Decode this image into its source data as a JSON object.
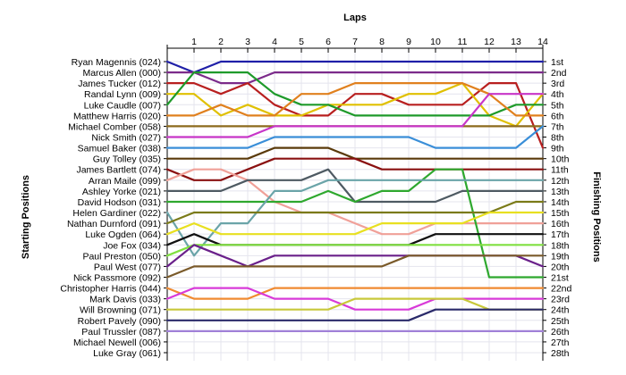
{
  "chart_data": {
    "type": "line",
    "title": "Laps",
    "ylabel_left": "Starting Positions",
    "ylabel_right": "Finishing Positions",
    "x": [
      0,
      1,
      2,
      3,
      4,
      5,
      6,
      7,
      8,
      9,
      10,
      11,
      12,
      13,
      14
    ],
    "x_ticks": [
      "1",
      "2",
      "3",
      "4",
      "5",
      "6",
      "7",
      "8",
      "9",
      "10",
      "11",
      "12",
      "13",
      "14"
    ],
    "y_range": [
      1,
      28
    ],
    "grid": true,
    "drivers": [
      "Ryan Magennis (024)",
      "Marcus Allen (000)",
      "James Tucker (012)",
      "Randal Lynn (009)",
      "Luke Caudle (007)",
      "Matthew Harris (020)",
      "Michael Comber (058)",
      "Nick Smith (027)",
      "Samuel Baker (038)",
      "Guy Tolley (035)",
      "James Bartlett (074)",
      "Arran Maile (099)",
      "Ashley Yorke (021)",
      "David Hodson (031)",
      "Helen Gardiner (022)",
      "Nathan Durnford (091)",
      "Luke Ogden (064)",
      "Joe Fox (034)",
      "Paul Preston (050)",
      "Paul West (077)",
      "Nick Passmore (092)",
      "Christopher Harris (044)",
      "Mark Davis (033)",
      "Will Browning (071)",
      "Robert Pavely (090)",
      "Paul Trussler (087)",
      "Michael Newell (006)",
      "Luke Gray (061)"
    ],
    "finishing_labels": [
      "1st",
      "2nd",
      "3rd",
      "4th",
      "5th",
      "6th",
      "7th",
      "8th",
      "9th",
      "10th",
      "11th",
      "12th",
      "13th",
      "14th",
      "15th",
      "16th",
      "17th",
      "18th",
      "19th",
      "20th",
      "21st",
      "22nd",
      "23rd",
      "24th",
      "25th",
      "26th",
      "27th",
      "28th"
    ],
    "series": [
      {
        "color": "#1f1fa8",
        "values": [
          1,
          2,
          1,
          1,
          1,
          1,
          1,
          1,
          1,
          1,
          1,
          1,
          1,
          1,
          1
        ]
      },
      {
        "color": "#7b2a8a",
        "values": [
          2,
          2,
          3,
          3,
          2,
          2,
          2,
          2,
          2,
          2,
          2,
          2,
          2,
          2,
          2
        ]
      },
      {
        "color": "#b81f1f",
        "values": [
          3,
          3,
          4,
          3,
          5,
          6,
          6,
          4,
          4,
          5,
          5,
          5,
          3,
          3,
          9
        ]
      },
      {
        "color": "#e0c000",
        "values": [
          4,
          4,
          6,
          5,
          6,
          6,
          5,
          5,
          5,
          4,
          4,
          3,
          6,
          7,
          4
        ]
      },
      {
        "color": "#1e9a2a",
        "values": [
          5,
          2,
          2,
          2,
          4,
          5,
          5,
          6,
          6,
          6,
          6,
          6,
          6,
          5,
          5
        ]
      },
      {
        "color": "#e0801e",
        "values": [
          6,
          6,
          5,
          6,
          6,
          4,
          4,
          3,
          3,
          3,
          3,
          3,
          4,
          6,
          6
        ]
      },
      {
        "color": "#8c6a1c",
        "values": [
          7,
          7,
          7,
          7,
          7,
          7,
          7,
          7,
          7,
          7,
          7,
          7,
          7,
          7,
          7
        ]
      },
      {
        "color": "#c835c8",
        "values": [
          8,
          8,
          8,
          8,
          7,
          7,
          7,
          7,
          7,
          7,
          7,
          7,
          4,
          4,
          4
        ]
      },
      {
        "color": "#3a8ed8",
        "values": [
          9,
          9,
          9,
          9,
          8,
          8,
          8,
          8,
          8,
          8,
          9,
          9,
          9,
          9,
          7
        ]
      },
      {
        "color": "#5a3a0a",
        "values": [
          10,
          10,
          10,
          10,
          9,
          9,
          9,
          10,
          10,
          10,
          10,
          10,
          10,
          10,
          10
        ]
      },
      {
        "color": "#8a1010",
        "values": [
          11,
          12,
          12,
          11,
          10,
          10,
          10,
          10,
          11,
          11,
          11,
          11,
          11,
          11,
          11
        ]
      },
      {
        "color": "#f0a098",
        "values": [
          12,
          11,
          11,
          12,
          14,
          15,
          15,
          16,
          17,
          17,
          16,
          16,
          16,
          16,
          16
        ]
      },
      {
        "color": "#4e5a62",
        "values": [
          13,
          13,
          13,
          12,
          12,
          12,
          11,
          14,
          14,
          14,
          14,
          13,
          13,
          13,
          13
        ]
      },
      {
        "color": "#2ea82e",
        "values": [
          14,
          14,
          14,
          14,
          14,
          14,
          13,
          14,
          13,
          13,
          11,
          11,
          21,
          21,
          21
        ]
      },
      {
        "color": "#6aa4a8",
        "values": [
          15,
          19,
          16,
          16,
          13,
          13,
          12,
          12,
          12,
          12,
          12,
          12,
          12,
          12,
          12
        ]
      },
      {
        "color": "#7a7a18",
        "values": [
          16,
          15,
          15,
          15,
          15,
          15,
          15,
          15,
          15,
          15,
          15,
          15,
          15,
          14,
          14
        ]
      },
      {
        "color": "#e8e020",
        "values": [
          17,
          16,
          17,
          17,
          17,
          17,
          17,
          17,
          16,
          16,
          16,
          16,
          15,
          15,
          15
        ]
      },
      {
        "color": "#111111",
        "values": [
          18,
          17,
          18,
          18,
          18,
          18,
          18,
          18,
          18,
          18,
          17,
          17,
          17,
          17,
          17
        ]
      },
      {
        "color": "#80e040",
        "values": [
          19,
          18,
          18,
          18,
          18,
          18,
          18,
          18,
          18,
          18,
          18,
          18,
          18,
          18,
          18
        ]
      },
      {
        "color": "#6a208a",
        "values": [
          20,
          18,
          19,
          20,
          19,
          19,
          19,
          19,
          19,
          19,
          19,
          19,
          19,
          19,
          20
        ]
      },
      {
        "color": "#7a5a2a",
        "values": [
          21,
          20,
          20,
          20,
          20,
          20,
          20,
          20,
          20,
          19,
          19,
          19,
          19,
          19,
          19
        ]
      },
      {
        "color": "#f08a30",
        "values": [
          22,
          23,
          23,
          23,
          22,
          22,
          22,
          22,
          22,
          22,
          22,
          22,
          22,
          22,
          22
        ]
      },
      {
        "color": "#d83ad8",
        "values": [
          23,
          22,
          22,
          22,
          23,
          23,
          23,
          24,
          24,
          24,
          23,
          23,
          23,
          23,
          23
        ]
      },
      {
        "color": "#c8c83a",
        "values": [
          24,
          24,
          24,
          24,
          24,
          24,
          24,
          23,
          23,
          23,
          23,
          23,
          24,
          24,
          24
        ]
      },
      {
        "color": "#2a2a6a",
        "values": [
          25,
          25,
          25,
          25,
          25,
          25,
          25,
          25,
          25,
          25,
          24,
          24,
          24,
          24,
          24
        ]
      },
      {
        "color": "#a080d8",
        "values": [
          26,
          26,
          26,
          26,
          26,
          26,
          26,
          26,
          26,
          26,
          26,
          26,
          26,
          26,
          26
        ]
      }
    ]
  }
}
